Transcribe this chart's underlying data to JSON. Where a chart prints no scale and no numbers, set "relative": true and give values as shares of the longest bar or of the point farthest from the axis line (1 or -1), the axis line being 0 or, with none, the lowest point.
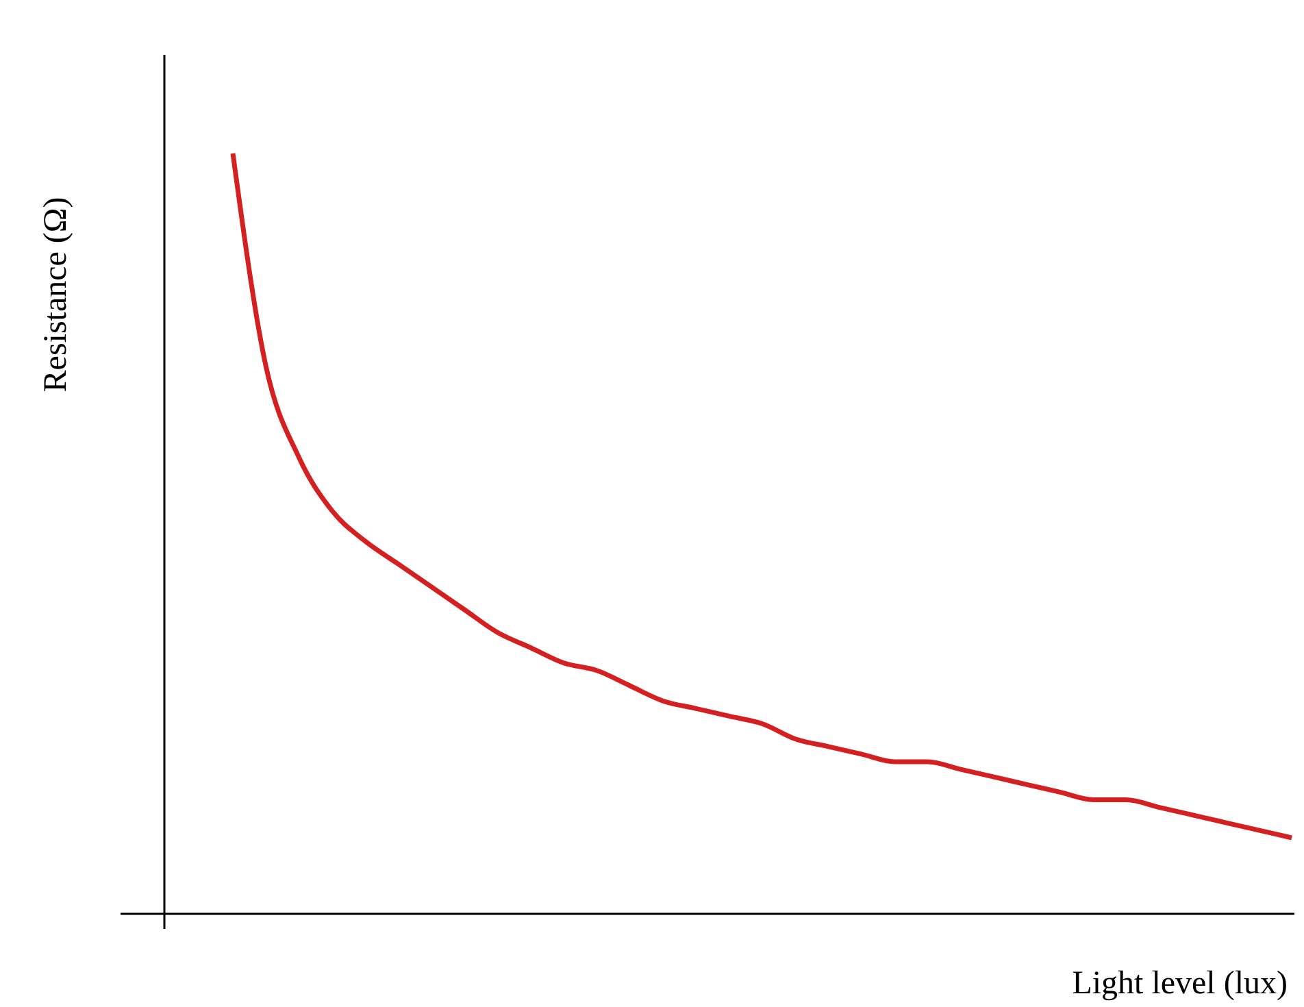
{
  "chart_data": {
    "type": "line",
    "xlabel": "Light level (lux)",
    "ylabel": "Resistance (Ω)",
    "relative": true,
    "marker": "none",
    "categories": [
      null,
      null,
      null,
      null,
      null,
      null,
      null,
      null,
      null,
      null,
      null,
      null,
      null,
      null,
      null,
      null,
      null,
      null,
      null,
      null,
      null,
      null,
      null,
      null,
      null,
      null,
      null,
      null,
      null,
      null,
      null,
      null,
      null
    ],
    "series": [
      {
        "color": "#d42020",
        "values": [
          1.0,
          0.72,
          0.6,
          0.53,
          0.49,
          0.46,
          0.43,
          0.4,
          0.37,
          0.35,
          0.33,
          0.32,
          0.3,
          0.28,
          0.27,
          0.26,
          0.25,
          0.23,
          0.22,
          0.21,
          0.2,
          0.2,
          0.19,
          0.18,
          0.17,
          0.16,
          0.15,
          0.15,
          0.14,
          0.13,
          0.12,
          0.11,
          0.1
        ]
      }
    ]
  }
}
